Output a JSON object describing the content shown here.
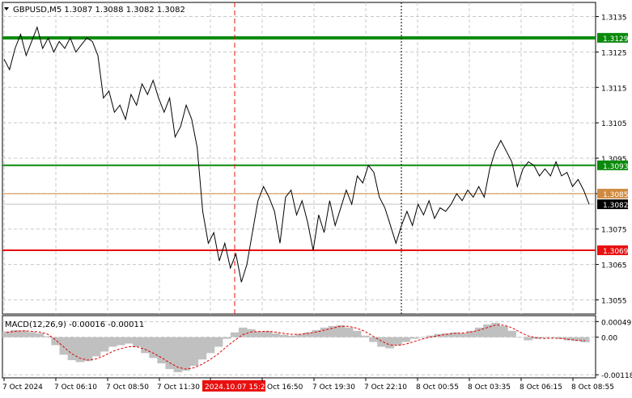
{
  "header": {
    "symbol_line": "GBPUSD,M5  1.3087 1.3088 1.3082 1.3082",
    "macd_label": "MACD(12,26,9) -0.00016 -0.00011"
  },
  "colors": {
    "price_line": "#000000",
    "grid": "#c8c8c8",
    "green_level": "#0a8a0a",
    "red_level": "#e81010",
    "orange_level": "#d08a40",
    "current_badge": "#000000",
    "histogram": "#c0c0c0",
    "signal": "#e00000",
    "axis_text": "#000000"
  },
  "price_axis": {
    "ticks": [
      "1.3135",
      "1.3125",
      "1.3115",
      "1.3105",
      "1.3095",
      "1.3085",
      "1.3075",
      "1.3065",
      "1.3055"
    ]
  },
  "levels": [
    {
      "label": "1.3129",
      "value": 1.3129,
      "kind": "green_thick"
    },
    {
      "label": "1.3093",
      "value": 1.3093,
      "kind": "green"
    },
    {
      "label": "1.3085",
      "value": 1.3085,
      "kind": "orange"
    },
    {
      "label": "1.3082",
      "value": 1.3082,
      "kind": "current"
    },
    {
      "label": "1.3069",
      "value": 1.3069,
      "kind": "red"
    }
  ],
  "macd_axis": {
    "ticks": [
      "0.00049",
      "0.00",
      "-0.00118"
    ]
  },
  "time_axis": {
    "labels": [
      "7 Oct 2024",
      "7 Oct 06:10",
      "7 Oct 08:50",
      "7 Oct 11:30",
      "2024.10.07 15:25",
      "Oct 16:50",
      "7 Oct 19:30",
      "7 Oct 22:10",
      "8 Oct 00:55",
      "8 Oct 03:35",
      "8 Oct 06:15",
      "8 Oct 08:55"
    ],
    "highlighted": "2024.10.07 15:25"
  },
  "chart_data": {
    "type": "line",
    "title": "GBPUSD,M5",
    "ylim": [
      1.3051,
      1.3139
    ],
    "series": [
      {
        "name": "GBPUSD",
        "values": [
          1.3123,
          1.312,
          1.3126,
          1.313,
          1.3124,
          1.3128,
          1.3132,
          1.3126,
          1.3129,
          1.3125,
          1.3128,
          1.3126,
          1.3129,
          1.3125,
          1.3127,
          1.3129,
          1.3128,
          1.3124,
          1.3112,
          1.3114,
          1.3108,
          1.311,
          1.3106,
          1.3113,
          1.311,
          1.3116,
          1.3113,
          1.3117,
          1.3112,
          1.3108,
          1.3112,
          1.3101,
          1.3104,
          1.311,
          1.3106,
          1.3098,
          1.308,
          1.3071,
          1.3074,
          1.3066,
          1.3071,
          1.3064,
          1.3068,
          1.306,
          1.3065,
          1.3074,
          1.3083,
          1.3087,
          1.3084,
          1.308,
          1.3071,
          1.3084,
          1.3086,
          1.3079,
          1.3083,
          1.3077,
          1.3069,
          1.3079,
          1.3074,
          1.3083,
          1.3076,
          1.3081,
          1.3086,
          1.3082,
          1.309,
          1.3088,
          1.3093,
          1.3091,
          1.3084,
          1.3081,
          1.3076,
          1.3071,
          1.3076,
          1.308,
          1.3076,
          1.3082,
          1.3079,
          1.3083,
          1.3078,
          1.3081,
          1.308,
          1.3082,
          1.3085,
          1.3083,
          1.3086,
          1.3084,
          1.3087,
          1.3084,
          1.3092,
          1.3097,
          1.31,
          1.3097,
          1.3094,
          1.3087,
          1.3092,
          1.3094,
          1.3093,
          1.309,
          1.3092,
          1.309,
          1.3094,
          1.309,
          1.3091,
          1.3087,
          1.3089,
          1.3086,
          1.3082
        ]
      },
      {
        "name": "MACD(12,26,9)",
        "values": [
          0.00018,
          0.00022,
          0.00021,
          0.00016,
          0.00012,
          3e-05,
          -0.00025,
          -0.00055,
          -0.00072,
          -0.00078,
          -0.00075,
          -0.0006,
          -0.00045,
          -0.0003,
          -0.00025,
          -0.0002,
          -0.0003,
          -0.0005,
          -0.00065,
          -0.00082,
          -0.001,
          -0.0011,
          -0.00105,
          -0.0009,
          -0.0007,
          -0.0005,
          -0.0003,
          -5e-05,
          0.00015,
          0.0003,
          0.00025,
          0.00018,
          0.0002,
          0.00012,
          8e-05,
          5e-05,
          0.0001,
          0.00015,
          0.00022,
          0.0003,
          0.00035,
          0.00038,
          0.0003,
          0.0002,
          5e-05,
          -0.00015,
          -0.0003,
          -0.00035,
          -0.00025,
          -0.00015,
          -5e-05,
          0.0,
          5e-05,
          0.0001,
          0.00012,
          0.00015,
          0.00012,
          0.0002,
          0.0003,
          0.0004,
          0.00045,
          0.00035,
          0.0002,
          0.0,
          -0.0001,
          -5e-05,
          -2e-05,
          0.0,
          -5e-05,
          -0.0001,
          -0.00012,
          -0.00016
        ]
      },
      {
        "name": "Signal",
        "values": [
          0.00015,
          0.00018,
          0.0002,
          0.00019,
          0.00016,
          0.0001,
          -8e-05,
          -0.0003,
          -0.00052,
          -0.00066,
          -0.00072,
          -0.00068,
          -0.00058,
          -0.00045,
          -0.00036,
          -0.0003,
          -0.0003,
          -0.00038,
          -0.0005,
          -0.00064,
          -0.0008,
          -0.00094,
          -0.001,
          -0.00096,
          -0.00085,
          -0.0007,
          -0.00052,
          -0.0003,
          -0.0001,
          8e-05,
          0.00016,
          0.00018,
          0.00018,
          0.00016,
          0.00012,
          9e-05,
          9e-05,
          0.00012,
          0.00016,
          0.00022,
          0.00028,
          0.00034,
          0.00034,
          0.00028,
          0.00018,
          3e-05,
          -0.00012,
          -0.00024,
          -0.00026,
          -0.00022,
          -0.00014,
          -6e-05,
          0.0,
          5e-05,
          9e-05,
          0.00012,
          0.00013,
          0.00016,
          0.00022,
          0.0003,
          0.00038,
          0.00038,
          0.0003,
          0.00016,
          4e-05,
          -2e-05,
          -4e-05,
          -3e-05,
          -4e-05,
          -7e-05,
          -0.0001,
          -0.00011
        ]
      }
    ]
  }
}
